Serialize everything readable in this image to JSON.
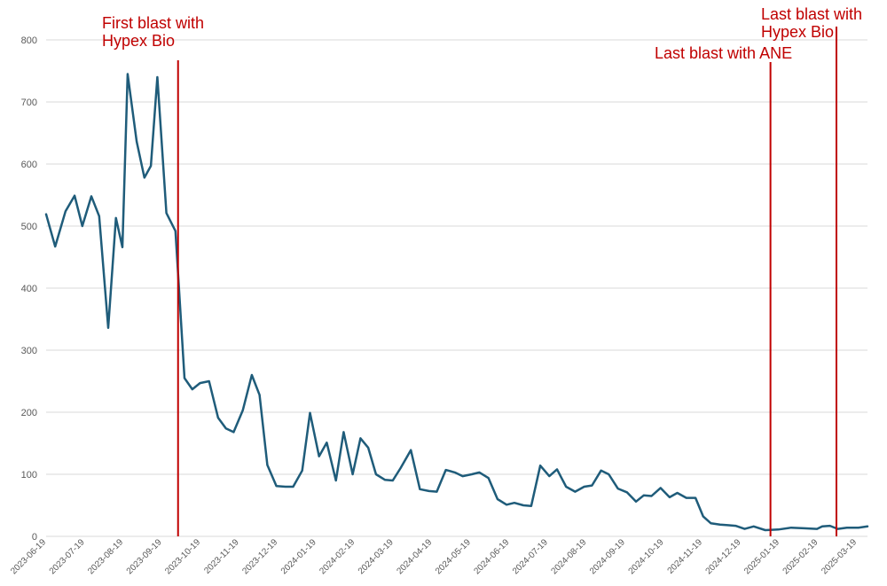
{
  "chart_data": {
    "type": "line",
    "title": "",
    "xlabel": "",
    "ylabel": "",
    "ylim": [
      0,
      800
    ],
    "y_ticks": [
      0,
      100,
      200,
      300,
      400,
      500,
      600,
      700,
      800
    ],
    "x_tick_labels": [
      "2023-06-19",
      "2023-07-19",
      "2023-08-19",
      "2023-09-19",
      "2023-10-19",
      "2023-11-19",
      "2023-12-19",
      "2024-01-19",
      "2024-02-19",
      "2024-03-19",
      "2024-04-19",
      "2024-05-19",
      "2024-06-19",
      "2024-07-19",
      "2024-08-19",
      "2024-09-19",
      "2024-10-19",
      "2024-11-19",
      "2024-12-19",
      "2025-01-19",
      "2025-02-19",
      "2025-03-19"
    ],
    "grid": true,
    "series": [
      {
        "name": "value",
        "color": "#1f5c7a",
        "x": [
          0,
          7,
          15,
          22,
          28,
          35,
          41,
          48,
          54,
          59,
          63,
          70,
          76,
          81,
          86,
          93,
          100,
          107,
          113,
          119,
          126,
          133,
          139,
          145,
          152,
          159,
          165,
          171,
          178,
          185,
          191,
          198,
          204,
          211,
          217,
          224,
          230,
          237,
          243,
          249,
          255,
          262,
          268,
          274,
          282,
          289,
          296,
          302,
          309,
          316,
          322,
          329,
          335,
          342,
          349,
          356,
          362,
          369,
          375,
          382,
          389,
          395,
          402,
          409,
          416,
          422,
          429,
          435,
          442,
          449,
          456,
          462,
          468,
          475,
          482,
          488,
          495,
          502,
          508,
          514,
          521,
          527,
          533,
          540,
          547,
          556,
          566,
          576,
          586,
          596,
          600,
          606,
          612,
          619,
          628,
          635
        ],
        "y": [
          519,
          467,
          524,
          549,
          500,
          548,
          516,
          336,
          513,
          466,
          745,
          636,
          578,
          597,
          740,
          521,
          492,
          255,
          237,
          247,
          250,
          191,
          174,
          168,
          203,
          260,
          228,
          115,
          81,
          80,
          80,
          106,
          199,
          129,
          151,
          90,
          168,
          100,
          158,
          143,
          100,
          91,
          90,
          110,
          139,
          76,
          73,
          72,
          107,
          103,
          97,
          100,
          103,
          94,
          60,
          51,
          54,
          50,
          49,
          114,
          97,
          108,
          80,
          72,
          80,
          82,
          106,
          100,
          77,
          71,
          56,
          66,
          65,
          78,
          63,
          70,
          62,
          62,
          32,
          21,
          19,
          18,
          17,
          12,
          16,
          10,
          11,
          14,
          13,
          12,
          16,
          17,
          12,
          14,
          14,
          16
        ]
      }
    ],
    "annotations": [
      {
        "x": 102,
        "label_lines": [
          "First blast with",
          "Hypex Bio"
        ]
      },
      {
        "x": 560,
        "label_lines": [
          "Last blast with ANE"
        ]
      },
      {
        "x": 611,
        "label_lines": [
          "Last blast with",
          "Hypex Bio"
        ]
      }
    ],
    "colors": {
      "line": "#1f5c7a",
      "marker": "#c00000",
      "annotation_text": "#c00000"
    }
  }
}
